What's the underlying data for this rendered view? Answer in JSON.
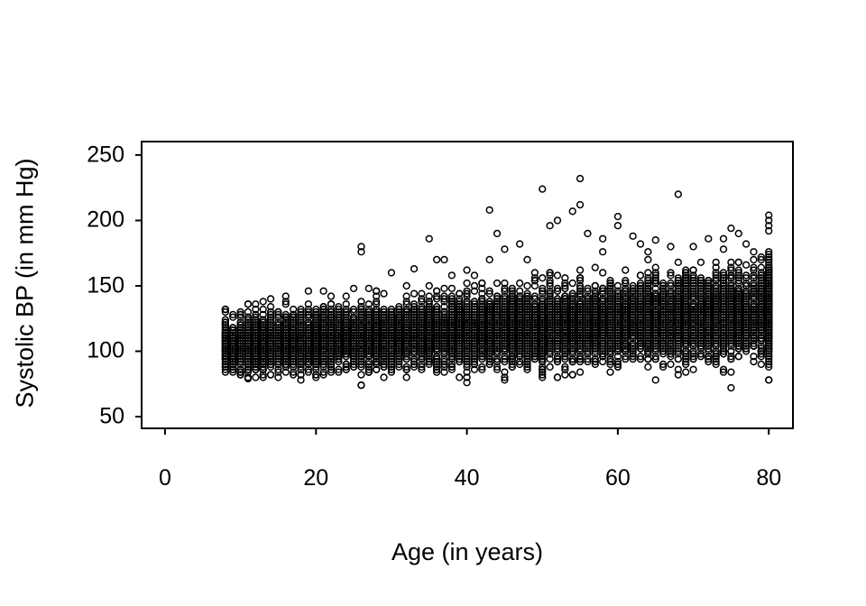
{
  "figure": {
    "background": "#ffffff",
    "axis_color": "#000000"
  },
  "chart_data": {
    "type": "scatter",
    "title": "",
    "xlabel": "Age (in years)",
    "ylabel": "Systolic BP (in mm Hg)",
    "xlim": [
      -3.1,
      83.2
    ],
    "ylim": [
      41,
      260.3
    ],
    "x_ticks": [
      0,
      20,
      40,
      60,
      80
    ],
    "y_ticks": [
      50,
      100,
      150,
      200,
      250
    ],
    "grid": false,
    "legend": null,
    "marker": "open-circle",
    "marker_color": "#000000",
    "marker_radius_px": 3.4,
    "marker_stroke_px": 1.5,
    "n_points": 10000,
    "age_range": [
      8,
      80
    ],
    "cloud_model": {
      "comment": "Dense overplotted cloud at integer ages; BP mean/sd rise with age; values quantized to even mm Hg",
      "age_min": 8,
      "age_max": 80,
      "age80_weight": 0.045,
      "mean_intercept": 101,
      "mean_slope": 0.36,
      "sd_intercept": 8.5,
      "sd_slope": 0.085,
      "tail_prob": 0.02,
      "tail_mean": 16,
      "tail_cap_base": 120,
      "tail_cap_slope": 1.4,
      "bp_min": 74,
      "bp_max": 234,
      "bp_rounding": 2
    },
    "outliers": [
      [
        26,
        180
      ],
      [
        26,
        176
      ],
      [
        30,
        160
      ],
      [
        33,
        163
      ],
      [
        35,
        186
      ],
      [
        37,
        170
      ],
      [
        38,
        158
      ],
      [
        40,
        162
      ],
      [
        43,
        208
      ],
      [
        44,
        190
      ],
      [
        45,
        178
      ],
      [
        47,
        182
      ],
      [
        48,
        170
      ],
      [
        50,
        224
      ],
      [
        51,
        196
      ],
      [
        52,
        200
      ],
      [
        54,
        207
      ],
      [
        55,
        232
      ],
      [
        55,
        212
      ],
      [
        56,
        190
      ],
      [
        58,
        186
      ],
      [
        60,
        203
      ],
      [
        60,
        196
      ],
      [
        62,
        188
      ],
      [
        63,
        182
      ],
      [
        65,
        185
      ],
      [
        68,
        220
      ],
      [
        70,
        180
      ],
      [
        72,
        186
      ],
      [
        74,
        178
      ],
      [
        76,
        190
      ],
      [
        77,
        182
      ],
      [
        78,
        176
      ],
      [
        80,
        204
      ],
      [
        80,
        200
      ],
      [
        80,
        196
      ],
      [
        80,
        192
      ],
      [
        26,
        74
      ],
      [
        40,
        76
      ],
      [
        75,
        72
      ],
      [
        18,
        78
      ],
      [
        11,
        79
      ]
    ]
  }
}
